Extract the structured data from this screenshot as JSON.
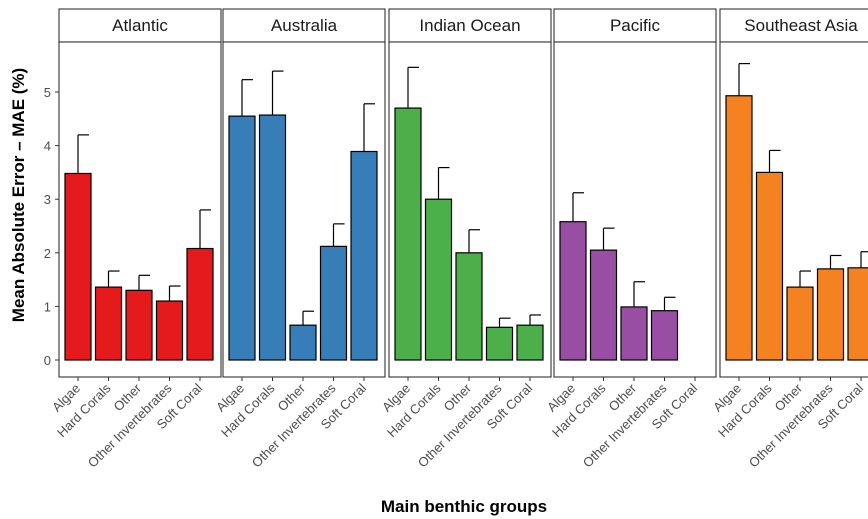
{
  "chart_data": {
    "type": "bar",
    "xlabel": "Main benthic groups",
    "ylabel": "Mean Absolute Error – MAE (%)",
    "ylim": [
      0,
      5.8
    ],
    "yticks": [
      0,
      1,
      2,
      3,
      4,
      5
    ],
    "ytick_labels": [
      "0",
      "1",
      "2",
      "3",
      "4",
      "5"
    ],
    "categories": [
      "Algae",
      "Hard Corals",
      "Other",
      "Other Invertebrates",
      "Soft Coral"
    ],
    "error_bars": true,
    "grid": false,
    "legend": "none",
    "panels": [
      {
        "name": "Atlantic",
        "color": "#E41A1C",
        "values": [
          3.48,
          1.36,
          1.3,
          1.1,
          2.08
        ],
        "errors": [
          0.72,
          0.3,
          0.28,
          0.28,
          0.72
        ]
      },
      {
        "name": "Australia",
        "color": "#377EB8",
        "values": [
          4.55,
          4.57,
          0.65,
          2.12,
          3.89
        ],
        "errors": [
          0.68,
          0.82,
          0.26,
          0.42,
          0.89
        ]
      },
      {
        "name": "Indian Ocean",
        "color": "#4DAF4A",
        "values": [
          4.7,
          3.0,
          2.0,
          0.61,
          0.65
        ],
        "errors": [
          0.76,
          0.59,
          0.43,
          0.17,
          0.19
        ]
      },
      {
        "name": "Pacific",
        "color": "#984EA3",
        "values": [
          2.58,
          2.05,
          0.99,
          0.92,
          null
        ],
        "errors": [
          0.54,
          0.41,
          0.47,
          0.25,
          null
        ]
      },
      {
        "name": "Southeast Asia",
        "color": "#F58220",
        "values": [
          4.93,
          3.5,
          1.36,
          1.7,
          1.72
        ],
        "errors": [
          0.6,
          0.41,
          0.3,
          0.25,
          0.3
        ]
      }
    ]
  }
}
